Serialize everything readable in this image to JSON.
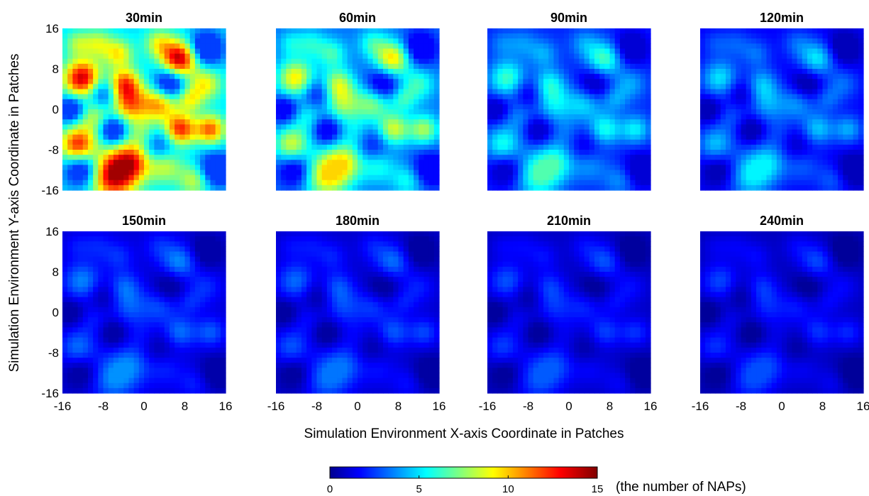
{
  "chart_data": {
    "type": "heatmap",
    "colormap": "jet",
    "x_ticks": [
      "-16",
      "-8",
      "0",
      "8",
      "16"
    ],
    "y_ticks": [
      "16",
      "8",
      "0",
      "-8",
      "-16"
    ],
    "x_range": [
      -16,
      16
    ],
    "y_range": [
      -16,
      16
    ],
    "xlabel": "Simulation Environment X-axis Coordinate in Patches",
    "ylabel": "Simulation Environment Y-axis Coordinate in Patches",
    "colorbar": {
      "range": [
        0,
        15
      ],
      "ticks": [
        "0",
        "5",
        "10",
        "15"
      ],
      "label": "(the number of NAPs)"
    },
    "panels": [
      {
        "title": "30min",
        "mean": 8.0,
        "max": 14.5
      },
      {
        "title": "60min",
        "mean": 5.5,
        "max": 10.0
      },
      {
        "title": "90min",
        "mean": 3.6,
        "max": 6.8
      },
      {
        "title": "120min",
        "mean": 2.5,
        "max": 5.5
      },
      {
        "title": "150min",
        "mean": 1.8,
        "max": 4.0
      },
      {
        "title": "180min",
        "mean": 1.5,
        "max": 3.6
      },
      {
        "title": "210min",
        "mean": 1.3,
        "max": 3.2
      },
      {
        "title": "240min",
        "mean": 1.1,
        "max": 3.0
      }
    ]
  }
}
